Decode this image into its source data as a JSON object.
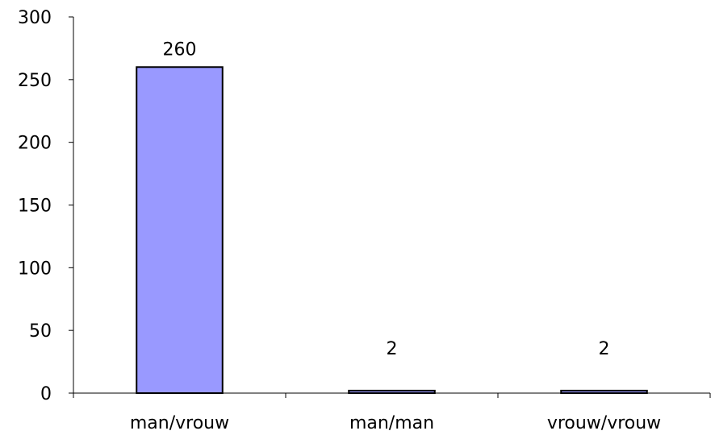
{
  "chart_data": {
    "type": "bar",
    "title": "",
    "xlabel": "",
    "ylabel": "",
    "categories": [
      "man/vrouw",
      "man/man",
      "vrouw/vrouw"
    ],
    "values": [
      260,
      2,
      2
    ],
    "data_labels": [
      "260",
      "2",
      "2"
    ],
    "ylim": [
      0,
      300
    ],
    "yticks": [
      0,
      50,
      100,
      150,
      200,
      250,
      300
    ],
    "grid": false,
    "legend": "none",
    "bar_color": "#9999ff",
    "bar_stroke": "#000000"
  }
}
